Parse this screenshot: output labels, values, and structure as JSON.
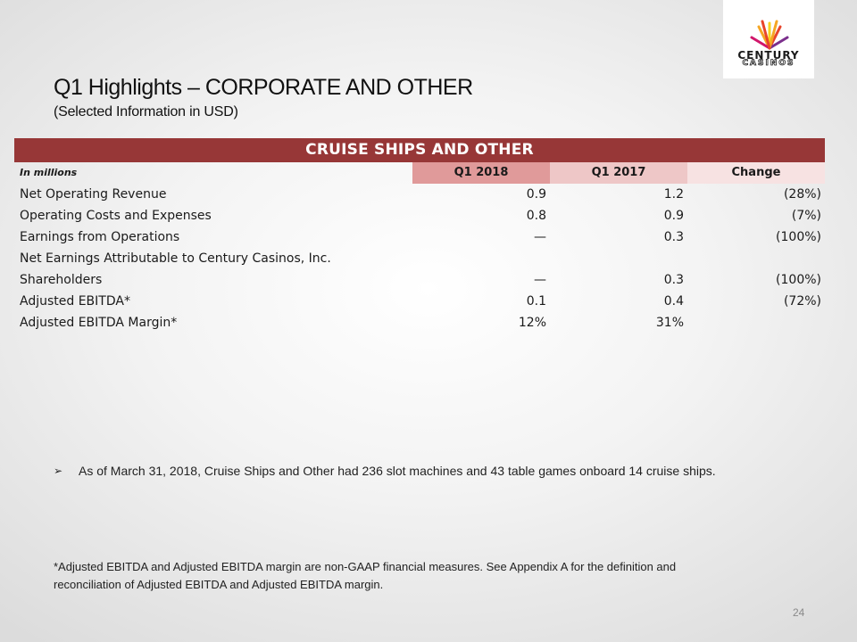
{
  "logo": {
    "line1": "CENTURY",
    "line2": "CASINOS",
    "burst_colors": [
      "#e8442a",
      "#f5a623",
      "#f7d21d",
      "#7b2f8c",
      "#d1166b"
    ]
  },
  "slide": {
    "title": "Q1 Highlights – CORPORATE AND OTHER",
    "subtitle": "(Selected Information in USD)",
    "page_number": "24"
  },
  "table": {
    "header": "CRUISE SHIPS AND OTHER",
    "columns": [
      "In millions",
      "Q1 2018",
      "Q1 2017",
      "Change"
    ],
    "rows": [
      {
        "label": "Net Operating Revenue",
        "q1_2018": "0.9",
        "q1_2017": "1.2",
        "change": "(28%)"
      },
      {
        "label": "Operating Costs and Expenses",
        "q1_2018": "0.8",
        "q1_2017": "0.9",
        "change": "(7%)"
      },
      {
        "label": "Earnings from Operations",
        "q1_2018": "—",
        "q1_2017": "0.3",
        "change": "(100%)"
      },
      {
        "label": "Net Earnings Attributable to Century Casinos, Inc.",
        "q1_2018": "",
        "q1_2017": "",
        "change": ""
      },
      {
        "label": "Shareholders",
        "q1_2018": "—",
        "q1_2017": "0.3",
        "change": "(100%)"
      },
      {
        "label": "Adjusted EBITDA*",
        "q1_2018": "0.1",
        "q1_2017": "0.4",
        "change": "(72%)"
      },
      {
        "label": "Adjusted EBITDA Margin*",
        "q1_2018": "12%",
        "q1_2017": "31%",
        "change": ""
      }
    ],
    "header_color": "#973737"
  },
  "bullet": {
    "icon": "arrow-bullet-icon",
    "text": "As of March 31, 2018, Cruise Ships and Other had 236 slot machines and 43 table games onboard 14 cruise ships."
  },
  "footnote": {
    "line1": "*Adjusted EBITDA and Adjusted EBITDA margin are non-GAAP financial measures. See Appendix A for the definition and",
    "line2": "reconciliation of Adjusted EBITDA and Adjusted EBITDA margin."
  }
}
